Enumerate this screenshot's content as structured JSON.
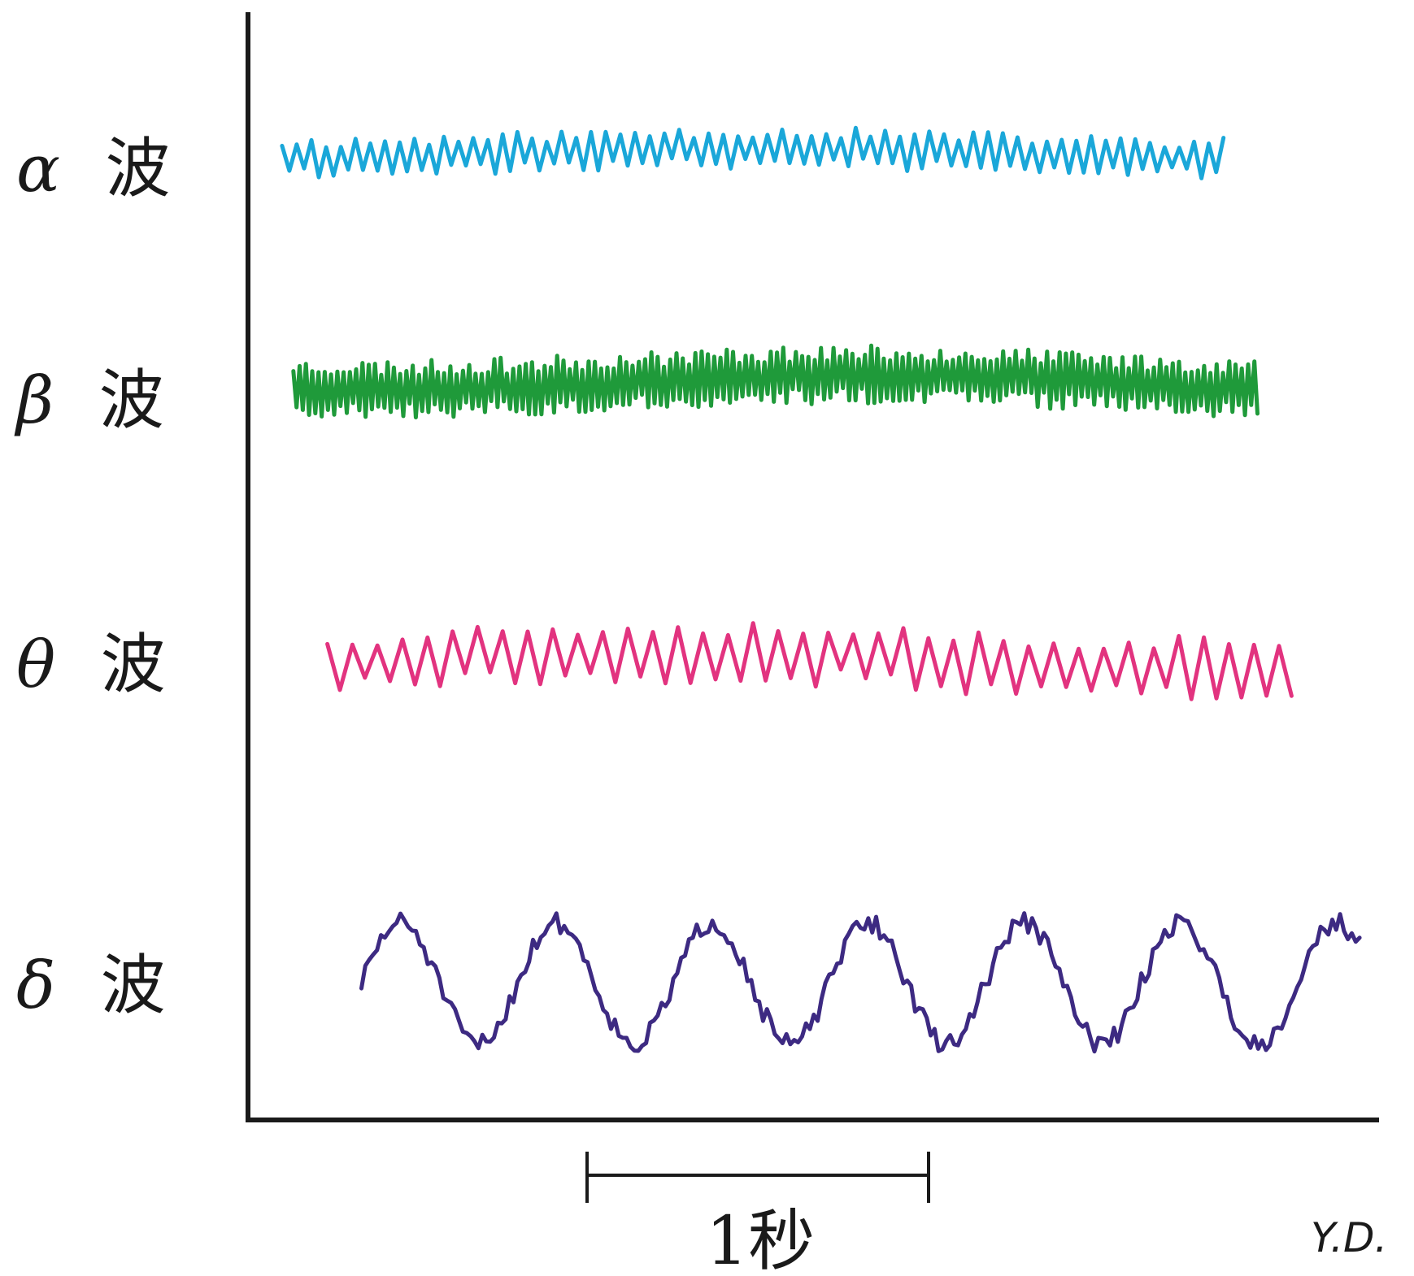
{
  "waves": [
    {
      "id": "alpha",
      "symbol": "α",
      "char": "波",
      "color": "#1aa7d9",
      "seed": 11,
      "amp": 0.65,
      "freq": 10,
      "start": 0.03,
      "end": 0.86
    },
    {
      "id": "beta",
      "symbol": "β",
      "char": "波",
      "color": "#1f9a3a",
      "seed": 23,
      "amp": 0.8,
      "freq": 24,
      "start": 0.04,
      "end": 0.89
    },
    {
      "id": "theta",
      "symbol": "θ",
      "char": "波",
      "color": "#e2337f",
      "seed": 37,
      "amp": 0.75,
      "freq": 6,
      "start": 0.07,
      "end": 0.92
    },
    {
      "id": "delta",
      "symbol": "δ",
      "char": "波",
      "color": "#3d2a82",
      "seed": 51,
      "amp": 1.0,
      "freq": 2,
      "start": 0.1,
      "end": 0.98
    }
  ],
  "scale_bar": {
    "label": "1秒"
  },
  "signature": "Y.D."
}
